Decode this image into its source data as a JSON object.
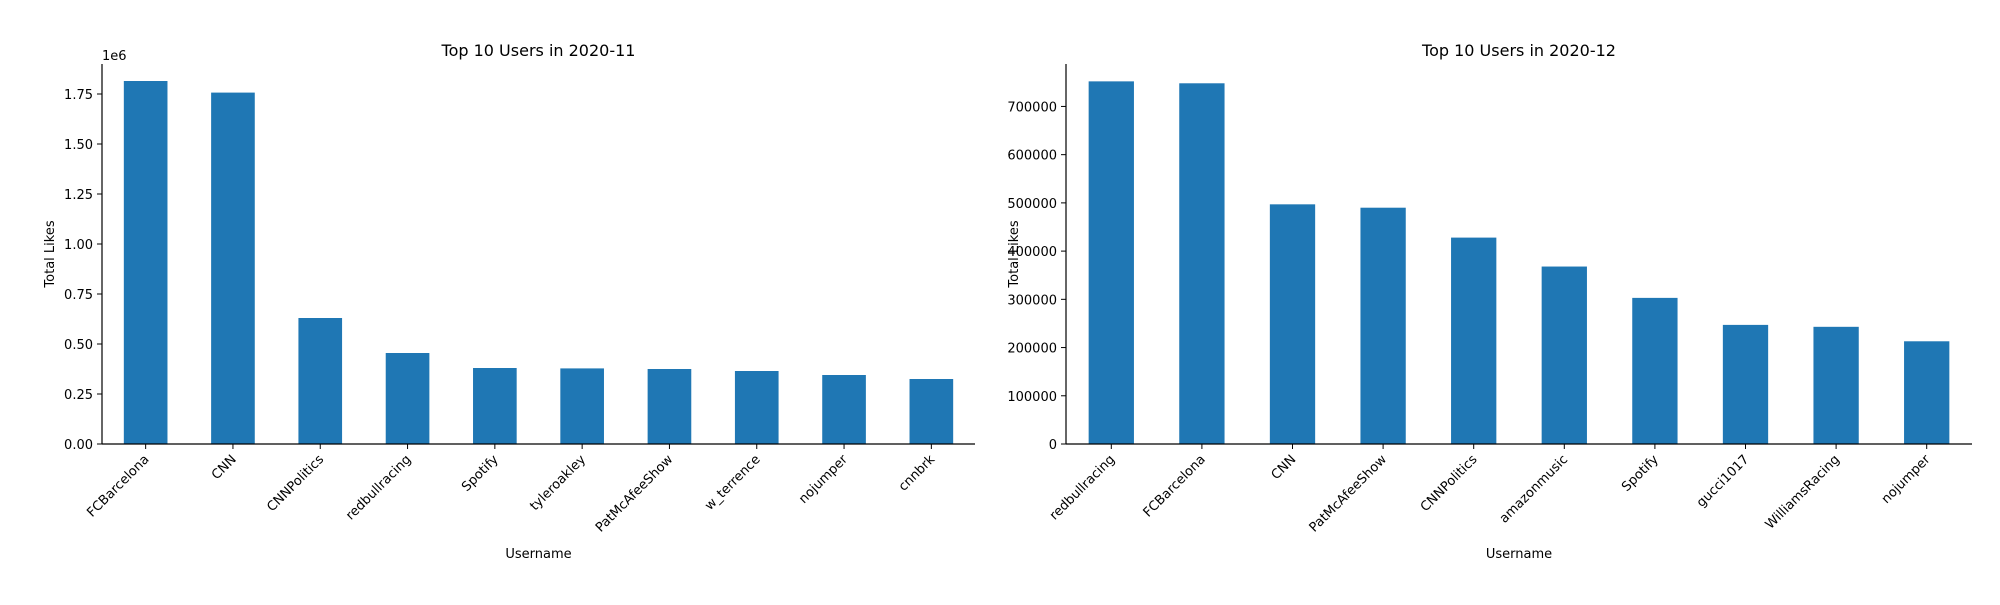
{
  "chart_data": [
    {
      "type": "bar",
      "title": "Top 10 Users in 2020-11",
      "xlabel": "Username",
      "ylabel": "Total Likes",
      "offset_label": "1e6",
      "categories": [
        "FCBarcelona",
        "CNN",
        "CNNPolitics",
        "redbullracing",
        "Spotify",
        "tyleroakley",
        "PatMcAfeeShow",
        "w_terrence",
        "nojumper",
        "cnnbrk"
      ],
      "values": [
        1815000,
        1757000,
        630000,
        455000,
        380000,
        378000,
        375000,
        365000,
        345000,
        325000
      ],
      "ylim": [
        0,
        1900000
      ],
      "yticks": [
        0,
        250000,
        500000,
        750000,
        1000000,
        1250000,
        1500000,
        1750000
      ],
      "ytick_labels": [
        "0.00",
        "0.25",
        "0.50",
        "0.75",
        "1.00",
        "1.25",
        "1.50",
        "1.75"
      ],
      "bar_color": "#1f77b4",
      "grid": false
    },
    {
      "type": "bar",
      "title": "Top 10 Users in 2020-12",
      "xlabel": "Username",
      "ylabel": "Total Likes",
      "offset_label": "",
      "categories": [
        "redbullracing",
        "FCBarcelona",
        "CNN",
        "PatMcAfeeShow",
        "CNNPolitics",
        "amazonmusic",
        "Spotify",
        "gucci1017",
        "WilliamsRacing",
        "nojumper"
      ],
      "values": [
        752000,
        748000,
        497000,
        490000,
        428000,
        368000,
        303000,
        247000,
        243000,
        213000
      ],
      "ylim": [
        0,
        788000
      ],
      "yticks": [
        0,
        100000,
        200000,
        300000,
        400000,
        500000,
        600000,
        700000
      ],
      "ytick_labels": [
        "0",
        "100000",
        "200000",
        "300000",
        "400000",
        "500000",
        "600000",
        "700000"
      ],
      "bar_color": "#1f77b4",
      "grid": false
    }
  ]
}
